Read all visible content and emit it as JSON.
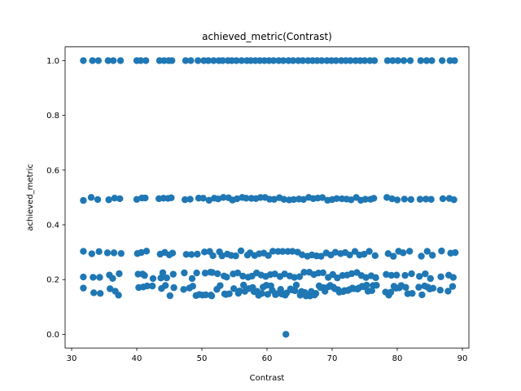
{
  "chart_data": {
    "type": "scatter",
    "title": "achieved_metric(Contrast)",
    "xlabel": "Contrast",
    "ylabel": "achieved_metric",
    "xlim": [
      29,
      91
    ],
    "ylim": [
      -0.05,
      1.05
    ],
    "xticks": [
      30,
      40,
      50,
      60,
      70,
      80,
      90
    ],
    "yticks": [
      0.0,
      0.2,
      0.4,
      0.6,
      0.8,
      1.0
    ],
    "xtick_labels": [
      "30",
      "40",
      "50",
      "60",
      "70",
      "80",
      "90"
    ],
    "ytick_labels": [
      "0.0",
      "0.2",
      "0.4",
      "0.6",
      "0.8",
      "1.0"
    ],
    "grid": false,
    "marker_color": "#1f77b4",
    "series": [
      {
        "values_note": "points grouped by y-level band",
        "bands": [
          {
            "y_center": 1.0,
            "y_spread": 0.0,
            "x": [
              31.8,
              33.2,
              34.1,
              35.6,
              36.4,
              37.5,
              40.0,
              40.6,
              41.4,
              43.5,
              44.2,
              44.9,
              45.4,
              47.5,
              48.3,
              49.4,
              50.3,
              51.0,
              51.8,
              52.6,
              53.2,
              54.0,
              54.6,
              55.3,
              56.1,
              56.9,
              57.5,
              58.2,
              58.9,
              59.6,
              60.3,
              61.0,
              61.8,
              62.5,
              63.3,
              64.0,
              64.8,
              65.5,
              66.3,
              67.0,
              67.7,
              68.4,
              69.2,
              69.9,
              70.6,
              71.4,
              72.1,
              72.8,
              73.6,
              74.3,
              75.0,
              75.8,
              76.5,
              78.5,
              79.3,
              80.1,
              81.0,
              82.0,
              83.6,
              84.5,
              85.3,
              86.9,
              88.1,
              88.8
            ]
          },
          {
            "y_center": 0.495,
            "y_spread": 0.006,
            "x": [
              31.8,
              33.0,
              34.0,
              35.7,
              36.6,
              37.4,
              40.0,
              40.8,
              41.3,
              43.4,
              44.1,
              44.8,
              45.3,
              47.4,
              48.2,
              49.5,
              50.2,
              51.1,
              51.9,
              52.5,
              53.3,
              54.1,
              54.7,
              55.4,
              56.2,
              56.8,
              57.6,
              58.3,
              59.0,
              59.7,
              60.4,
              61.1,
              61.9,
              62.6,
              63.4,
              64.1,
              64.9,
              65.6,
              66.4,
              67.1,
              67.8,
              68.5,
              69.3,
              70.0,
              70.7,
              71.5,
              72.2,
              72.9,
              73.7,
              74.4,
              75.1,
              75.9,
              76.4,
              78.4,
              79.2,
              80.0,
              81.1,
              82.1,
              83.5,
              84.4,
              85.2,
              87.0,
              88.0,
              88.7
            ]
          },
          {
            "y_center": 0.295,
            "y_spread": 0.01,
            "x": [
              31.8,
              33.1,
              34.2,
              35.5,
              36.5,
              37.6,
              40.1,
              40.7,
              41.5,
              43.6,
              44.3,
              45.0,
              45.5,
              47.6,
              48.4,
              49.3,
              50.4,
              51.2,
              51.7,
              52.7,
              53.1,
              53.9,
              54.5,
              55.2,
              56.0,
              57.0,
              57.4,
              58.1,
              58.8,
              59.5,
              60.2,
              60.9,
              61.7,
              62.4,
              63.2,
              63.9,
              64.7,
              65.4,
              66.2,
              66.9,
              67.6,
              68.3,
              69.1,
              69.8,
              70.5,
              71.3,
              72.0,
              72.7,
              73.5,
              74.2,
              74.9,
              75.7,
              76.6,
              78.6,
              79.4,
              80.2,
              80.9,
              81.9,
              83.7,
              84.6,
              85.4,
              86.8,
              88.2,
              88.9
            ]
          },
          {
            "y_center": 0.215,
            "y_spread": 0.012,
            "x": [
              31.8,
              33.3,
              34.3,
              35.8,
              36.3,
              37.3,
              40.2,
              40.9,
              41.2,
              42.5,
              43.7,
              44.0,
              44.6,
              45.6,
              47.3,
              48.5,
              49.2,
              50.5,
              51.3,
              51.6,
              52.4,
              53.4,
              53.8,
              54.8,
              55.5,
              56.3,
              57.1,
              57.7,
              58.4,
              59.1,
              59.8,
              60.5,
              61.2,
              62.0,
              62.7,
              63.5,
              64.2,
              65.0,
              65.7,
              66.5,
              67.2,
              67.9,
              68.6,
              69.4,
              70.1,
              70.8,
              71.6,
              72.3,
              73.0,
              73.8,
              74.5,
              75.2,
              76.0,
              76.7,
              78.3,
              79.1,
              79.9,
              81.2,
              82.2,
              83.4,
              84.3,
              85.1,
              86.7,
              87.9,
              88.6
            ]
          },
          {
            "y_center": 0.16,
            "y_spread": 0.02,
            "x": [
              31.8,
              33.4,
              34.4,
              35.9,
              36.7,
              37.2,
              40.3,
              41.0,
              41.6,
              42.4,
              43.8,
              44.4,
              45.1,
              45.7,
              47.2,
              48.1,
              48.6,
              49.1,
              49.6,
              50.1,
              50.6,
              51.4,
              51.5,
              52.3,
              52.8,
              53.5,
              53.7,
              54.2,
              54.9,
              55.6,
              55.8,
              56.4,
              56.6,
              57.2,
              57.8,
              58.0,
              58.5,
              58.7,
              59.2,
              59.4,
              59.9,
              60.1,
              60.6,
              60.8,
              61.3,
              61.5,
              62.1,
              62.3,
              62.8,
              63.0,
              63.6,
              63.8,
              64.3,
              64.5,
              65.1,
              65.3,
              65.8,
              66.0,
              66.6,
              66.8,
              67.3,
              67.5,
              68.0,
              68.2,
              68.7,
              68.9,
              69.5,
              69.7,
              70.2,
              70.4,
              70.9,
              71.1,
              71.7,
              71.9,
              72.4,
              72.6,
              73.1,
              73.3,
              73.9,
              74.1,
              74.6,
              74.8,
              75.3,
              75.5,
              76.1,
              76.3,
              76.8,
              78.2,
              78.7,
              79.0,
              79.5,
              79.8,
              80.3,
              80.6,
              81.3,
              81.6,
              82.3,
              83.3,
              83.8,
              84.2,
              84.7,
              85.0,
              85.5,
              86.6,
              87.8,
              88.5
            ]
          },
          {
            "y_center": 0.0,
            "y_spread": 0.0,
            "x": [
              62.9
            ]
          }
        ]
      }
    ]
  }
}
